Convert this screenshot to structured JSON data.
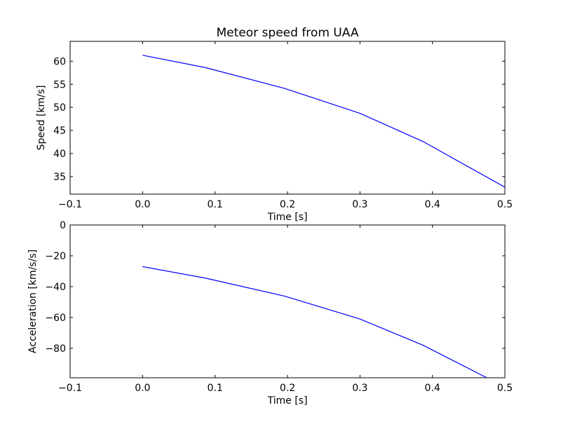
{
  "chart_data": [
    {
      "type": "line",
      "title": "Meteor speed from  UAA",
      "xlabel": "Time [s]",
      "ylabel": "Speed [km/s]",
      "xlim": [
        -0.1,
        0.5
      ],
      "ylim": [
        31.2,
        64.3
      ],
      "xticks": [
        "−0.1",
        "0.0",
        "0.1",
        "0.2",
        "0.3",
        "0.4",
        "0.5"
      ],
      "yticks": [
        "35",
        "40",
        "45",
        "50",
        "55",
        "60"
      ],
      "grid": false,
      "line_color": "#0000ff",
      "series": [
        {
          "x": [
            0.0,
            0.087,
            0.196,
            0.3,
            0.387,
            0.5
          ],
          "y": [
            61.3,
            58.6,
            54.1,
            48.7,
            42.6,
            32.7
          ]
        }
      ]
    },
    {
      "type": "line",
      "title": "",
      "xlabel": "Time [s]",
      "ylabel": "Acceleration [km/s/s]",
      "xlim": [
        -0.1,
        0.5
      ],
      "ylim": [
        -99.1,
        0
      ],
      "xticks": [
        "−0.1",
        "0.0",
        "0.1",
        "0.2",
        "0.3",
        "0.4",
        "0.5"
      ],
      "yticks": [
        "−80",
        "−60",
        "−40",
        "−20",
        "0"
      ],
      "grid": false,
      "line_color": "#0000ff",
      "series": [
        {
          "x": [
            0.0,
            0.087,
            0.196,
            0.3,
            0.387,
            0.475
          ],
          "y": [
            -27,
            -34.5,
            -46.2,
            -61,
            -78,
            -99.1
          ]
        }
      ]
    }
  ]
}
